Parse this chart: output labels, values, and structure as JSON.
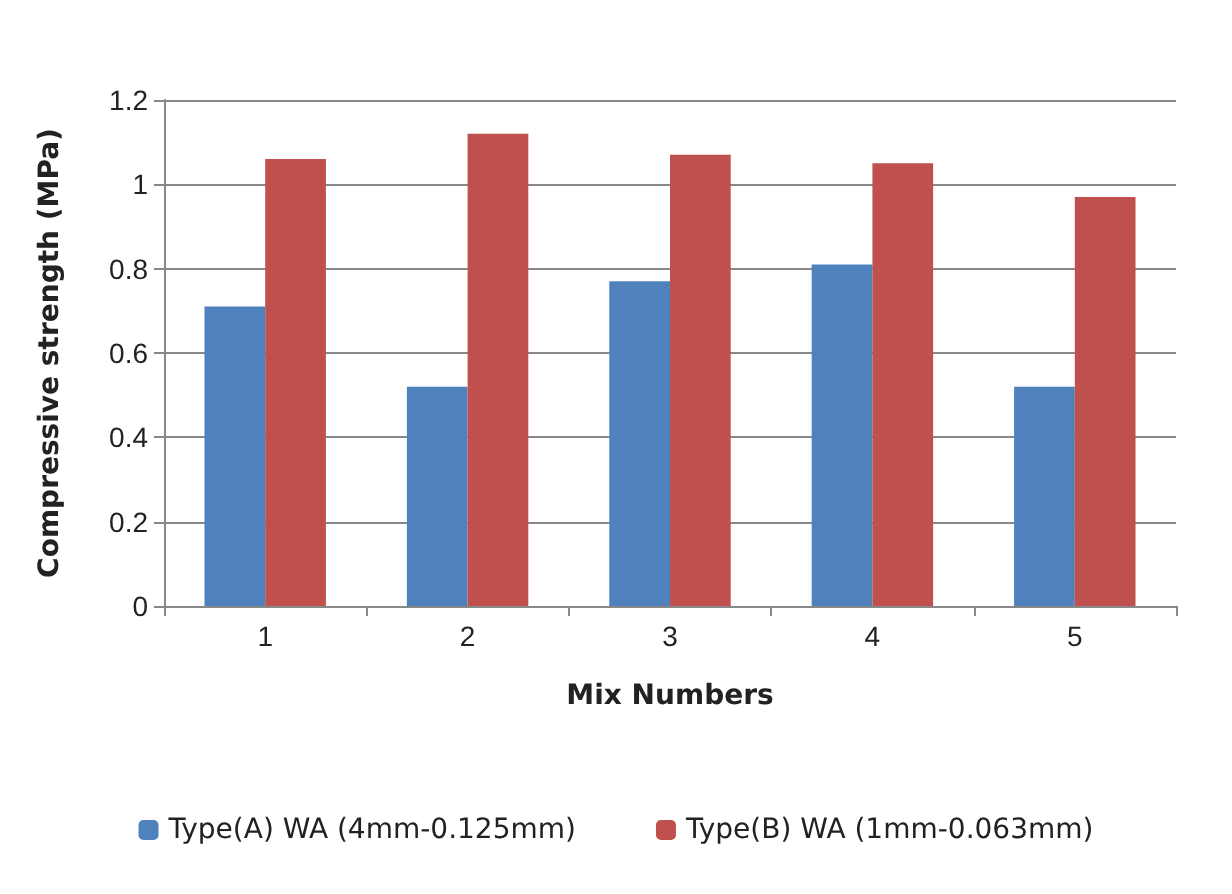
{
  "chart_data": {
    "type": "bar",
    "xlabel": "Mix Numbers",
    "ylabel": "Compressive strength (MPa)",
    "categories": [
      "1",
      "2",
      "3",
      "4",
      "5"
    ],
    "series": [
      {
        "name": "Type(A) WA (4mm-0.125mm)",
        "color": "#4f81bd",
        "values": [
          0.71,
          0.52,
          0.77,
          0.81,
          0.52
        ]
      },
      {
        "name": "Type(B) WA (1mm-0.063mm)",
        "color": "#c0504d",
        "values": [
          1.06,
          1.12,
          1.07,
          1.05,
          0.97
        ]
      }
    ],
    "ylim": [
      0,
      1.2
    ],
    "yticks": [
      0,
      0.2,
      0.4,
      0.6,
      0.8,
      1,
      1.2
    ],
    "grid": "y",
    "legend": "bottom"
  }
}
